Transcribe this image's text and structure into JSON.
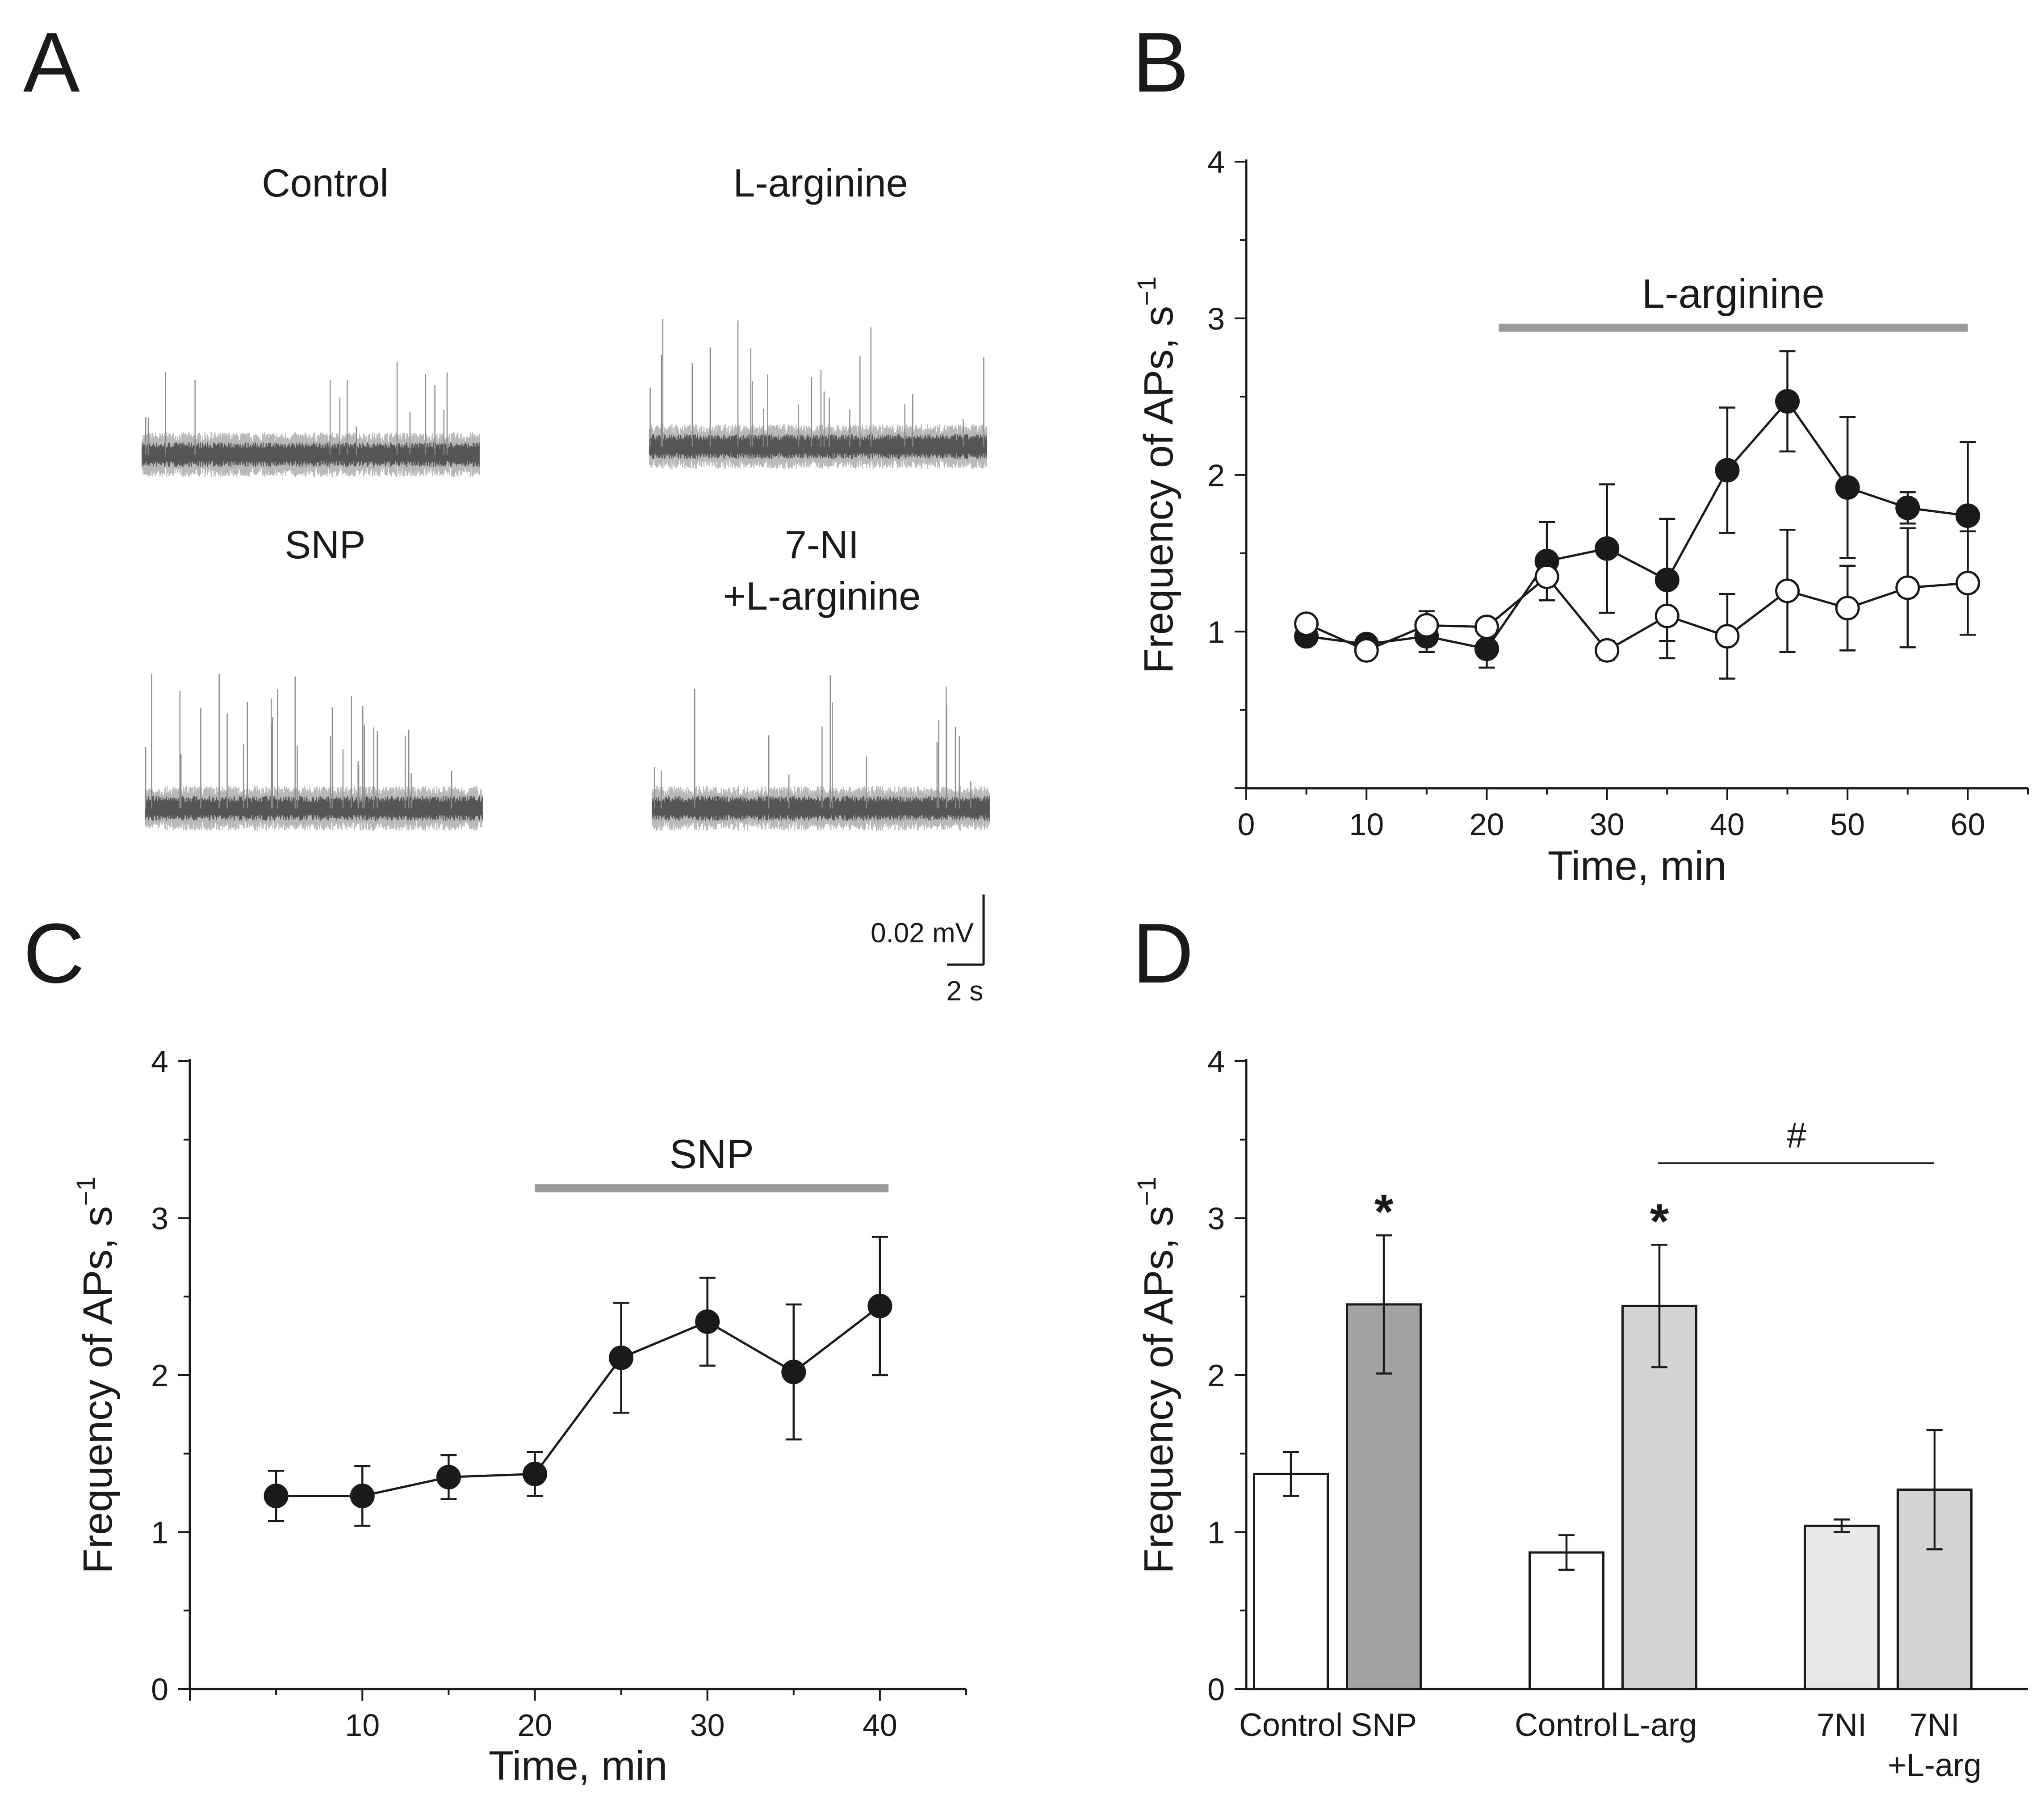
{
  "panels": {
    "A": {
      "letter": "A",
      "traces": [
        {
          "title": "Control"
        },
        {
          "title": "L-arginine"
        },
        {
          "title": "SNP"
        },
        {
          "title_line1": "7-NI",
          "title_line2": "+L-arginine"
        }
      ],
      "scalebar": {
        "voltage": "0.02 mV",
        "time": "2 s"
      }
    },
    "B": {
      "letter": "B"
    },
    "C": {
      "letter": "C"
    },
    "D": {
      "letter": "D"
    }
  },
  "chart_data": [
    {
      "id": "B",
      "type": "line",
      "xlabel": "Time, min",
      "ylabel": "Frequency of APs, s",
      "ylabel_superscript": "−1",
      "xlim": [
        0,
        65
      ],
      "ylim": [
        0,
        4
      ],
      "xticks": [
        0,
        10,
        20,
        30,
        40,
        50,
        60
      ],
      "yticks": [
        1,
        2,
        3,
        4
      ],
      "treatment_bar": {
        "label": "L-arginine",
        "x_start": 21,
        "x_end": 60,
        "y": 2.94
      },
      "series": [
        {
          "name": "L-arginine",
          "marker": "filled-circle",
          "x": [
            5,
            10,
            15,
            20,
            25,
            30,
            35,
            40,
            45,
            50,
            55,
            60
          ],
          "y": [
            0.97,
            0.92,
            0.97,
            0.89,
            1.45,
            1.53,
            1.33,
            2.03,
            2.47,
            1.92,
            1.79,
            1.74
          ],
          "err": [
            0.05,
            0.05,
            0.1,
            0.12,
            0.25,
            0.41,
            0.39,
            0.4,
            0.32,
            0.45,
            0.1,
            0.47
          ]
        },
        {
          "name": "7-NI + L-arginine",
          "marker": "open-circle",
          "x": [
            5,
            10,
            15,
            20,
            25,
            30,
            35,
            40,
            45,
            50,
            55,
            60
          ],
          "y": [
            1.05,
            0.88,
            1.04,
            1.03,
            1.35,
            0.88,
            1.1,
            0.97,
            1.26,
            1.15,
            1.28,
            1.31
          ],
          "err": [
            0.05,
            0.04,
            0.09,
            0.05,
            0.15,
            0.06,
            0.27,
            0.27,
            0.39,
            0.27,
            0.38,
            0.33
          ]
        }
      ]
    },
    {
      "id": "C",
      "type": "line",
      "xlabel": "Time, min",
      "ylabel": "Frequency of APs, s",
      "ylabel_superscript": "−1",
      "xlim": [
        0,
        45
      ],
      "ylim": [
        0,
        4
      ],
      "xticks": [
        10,
        20,
        30,
        40
      ],
      "yticks": [
        0,
        1,
        2,
        3,
        4
      ],
      "treatment_bar": {
        "label": "SNP",
        "x_start": 20,
        "x_end": 40.5,
        "y": 3.19
      },
      "series": [
        {
          "name": "SNP",
          "marker": "filled-circle",
          "x": [
            5,
            10,
            15,
            20,
            25,
            30,
            35,
            40
          ],
          "y": [
            1.23,
            1.23,
            1.35,
            1.37,
            2.11,
            2.34,
            2.02,
            2.44
          ],
          "err": [
            0.16,
            0.19,
            0.14,
            0.14,
            0.35,
            0.28,
            0.43,
            0.44
          ]
        }
      ]
    },
    {
      "id": "D",
      "type": "bar",
      "ylabel": "Frequency of APs, s",
      "ylabel_superscript": "−1",
      "ylim": [
        0,
        4
      ],
      "yticks": [
        0,
        1,
        2,
        3,
        4
      ],
      "bars": [
        {
          "label": "Control",
          "value": 1.37,
          "err": 0.14,
          "color": "#ffffff",
          "sig": ""
        },
        {
          "label": "SNP",
          "value": 2.45,
          "err": 0.44,
          "color": "#a3a3a3",
          "sig": "*"
        },
        {
          "label": "Control",
          "value": 0.87,
          "err": 0.11,
          "color": "#ffffff",
          "sig": ""
        },
        {
          "label": "L-arg",
          "value": 2.44,
          "err": 0.39,
          "color": "#d3d3d3",
          "sig": "*"
        },
        {
          "label": "7NI",
          "value": 1.04,
          "err": 0.04,
          "color": "#e8e8e8",
          "sig": ""
        },
        {
          "label_line1": "7NI",
          "label_line2": "+L-arg",
          "value": 1.27,
          "err": 0.38,
          "color": "#d3d3d3",
          "sig": ""
        }
      ],
      "comparison": {
        "label": "#",
        "y": 3.35
      }
    }
  ]
}
